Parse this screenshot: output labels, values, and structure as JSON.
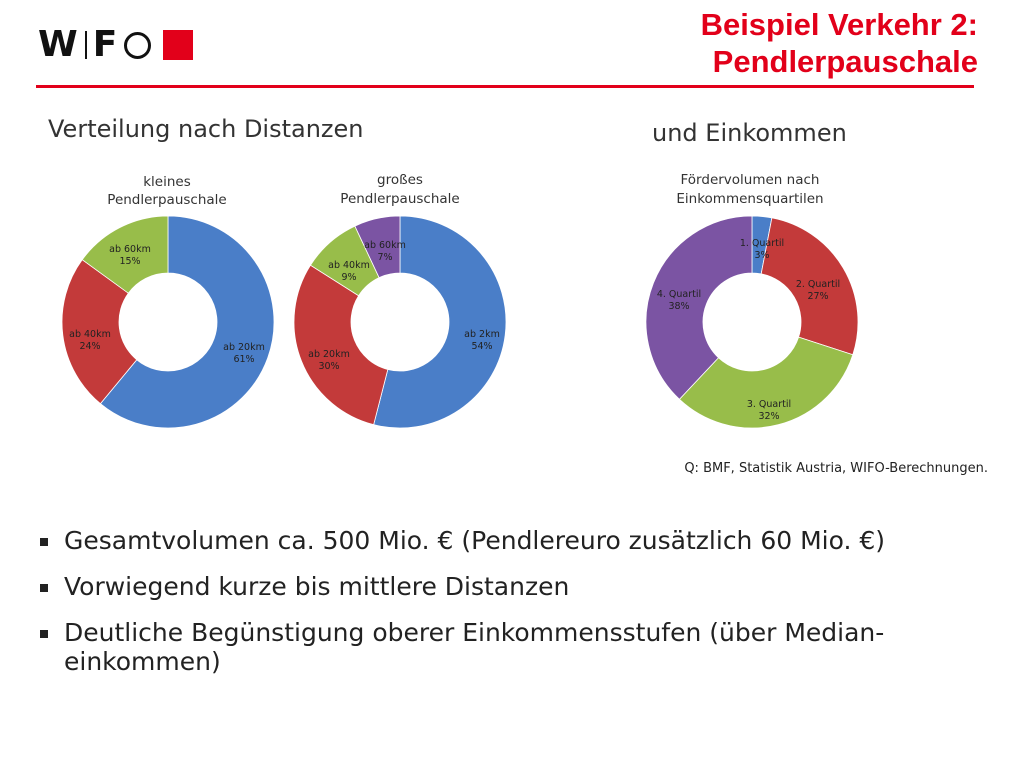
{
  "logo": {
    "text_w": "W",
    "text_f": "F"
  },
  "header": {
    "title_line1": "Beispiel Verkehr 2:",
    "title_line2": "Pendlerpauschale",
    "subtitle_left": "Verteilung nach Distanzen",
    "subtitle_right": "und Einkommen"
  },
  "chart_data": [
    {
      "type": "pie",
      "title": "kleines Pendlerpauschale",
      "slices": [
        {
          "label": "ab 20km",
          "value": 61,
          "display": "61%",
          "color": "#4a7ec8"
        },
        {
          "label": "ab 40km",
          "value": 24,
          "display": "24%",
          "color": "#c33a3a"
        },
        {
          "label": "ab 60km",
          "value": 15,
          "display": "15%",
          "color": "#98bd4a"
        }
      ]
    },
    {
      "type": "pie",
      "title": "großes Pendlerpauschale",
      "slices": [
        {
          "label": "ab 2km",
          "value": 54,
          "display": "54%",
          "color": "#4a7ec8"
        },
        {
          "label": "ab 20km",
          "value": 30,
          "display": "30%",
          "color": "#c33a3a"
        },
        {
          "label": "ab 40km",
          "value": 9,
          "display": "9%",
          "color": "#98bd4a"
        },
        {
          "label": "ab 60km",
          "value": 7,
          "display": "7%",
          "color": "#7b54a3"
        }
      ]
    },
    {
      "type": "pie",
      "title": "Fördervolumen nach Einkommensquartilen",
      "slices": [
        {
          "label": "1. Quartil",
          "value": 3,
          "display": "3%",
          "color": "#4a7ec8"
        },
        {
          "label": "2. Quartil",
          "value": 27,
          "display": "27%",
          "color": "#c33a3a"
        },
        {
          "label": "3. Quartil",
          "value": 32,
          "display": "32%",
          "color": "#98bd4a"
        },
        {
          "label": "4. Quartil",
          "value": 38,
          "display": "38%",
          "color": "#7b54a3"
        }
      ]
    }
  ],
  "source": "Q: BMF, Statistik Austria, WIFO-Berechnungen.",
  "bullets": [
    "Gesamtvolumen ca. 500 Mio. € (Pendlereuro zusätzlich 60 Mio. €)",
    "Vorwiegend kurze bis mittlere Distanzen",
    "Deutliche Begünstigung oberer Einkommensstufen (über Median-einkommen)"
  ],
  "colors": {
    "accent": "#e2001a"
  }
}
